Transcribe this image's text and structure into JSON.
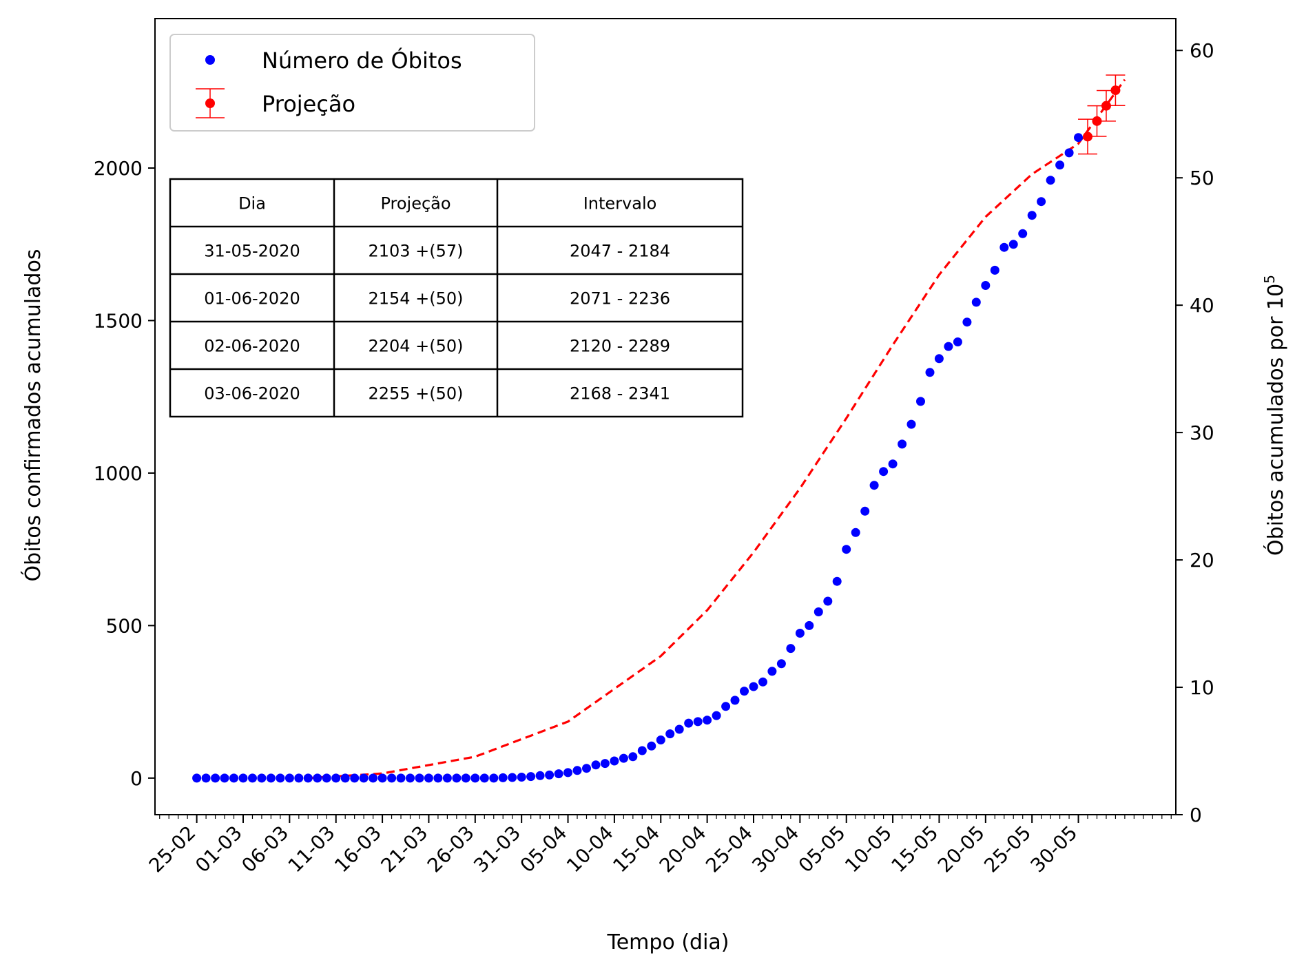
{
  "chart_data": {
    "type": "scatter",
    "xlabel": "Tempo (dia)",
    "ylabel": "Óbitos confirmados acumulados",
    "ylabel_right_prefix": "Óbitos acumulados por 10",
    "ylabel_right_exp": "5",
    "ylim": [
      -120,
      2490
    ],
    "ylim_right": [
      0,
      62.5
    ],
    "xlim_days": [
      -4.5,
      105.5
    ],
    "x_tick_labels": [
      "25-02",
      "01-03",
      "06-03",
      "11-03",
      "16-03",
      "21-03",
      "26-03",
      "31-03",
      "05-04",
      "10-04",
      "15-04",
      "20-04",
      "25-04",
      "30-04",
      "05-05",
      "10-05",
      "15-05",
      "20-05",
      "25-05",
      "30-05"
    ],
    "y_ticks": [
      0,
      500,
      1000,
      1500,
      2000
    ],
    "y_ticks_right": [
      0,
      10,
      20,
      30,
      40,
      50,
      60
    ],
    "legend": {
      "position": "top-left",
      "entries": [
        {
          "label": "Número de Óbitos",
          "color": "#0000ff",
          "marker": "dot"
        },
        {
          "label": "Projeção",
          "color": "#ff0000",
          "marker": "errorbar-dot"
        }
      ]
    },
    "series": [
      {
        "name": "Número de Óbitos",
        "color": "#0000ff",
        "start_date": "25-02",
        "values": [
          0,
          0,
          0,
          0,
          0,
          0,
          0,
          0,
          0,
          0,
          0,
          0,
          0,
          0,
          0,
          0,
          0,
          0,
          0,
          0,
          0,
          0,
          0,
          0,
          0,
          0,
          0,
          0,
          0,
          0,
          0,
          0,
          0,
          1,
          2,
          3,
          5,
          8,
          10,
          14,
          18,
          25,
          32,
          43,
          48,
          56,
          65,
          70,
          90,
          105,
          125,
          145,
          160,
          180,
          185,
          190,
          205,
          235,
          255,
          285,
          300,
          315,
          350,
          375,
          425,
          475,
          500,
          545,
          580,
          645,
          750,
          805,
          875,
          960,
          1005,
          1030,
          1095,
          1160,
          1235,
          1330,
          1375,
          1415,
          1430,
          1495,
          1560,
          1615,
          1665,
          1740,
          1750,
          1785,
          1845,
          1890,
          1960,
          2010,
          2050,
          2100
        ]
      },
      {
        "name": "Projeção",
        "color": "#ff0000",
        "points": [
          {
            "date": "31-05-2020",
            "day": 96,
            "value": 2103,
            "err": 57
          },
          {
            "date": "01-06-2020",
            "day": 97,
            "value": 2154,
            "err": 50
          },
          {
            "date": "02-06-2020",
            "day": 98,
            "value": 2204,
            "err": 50
          },
          {
            "date": "03-06-2020",
            "day": 99,
            "value": 2255,
            "err": 50
          }
        ]
      }
    ],
    "fit_curve": {
      "color": "#ff0000",
      "style": "dashed",
      "points": [
        [
          12,
          0
        ],
        [
          20,
          15
        ],
        [
          30,
          70
        ],
        [
          40,
          185
        ],
        [
          50,
          400
        ],
        [
          55,
          550
        ],
        [
          60,
          740
        ],
        [
          65,
          950
        ],
        [
          70,
          1180
        ],
        [
          75,
          1420
        ],
        [
          80,
          1650
        ],
        [
          85,
          1840
        ],
        [
          90,
          1980
        ],
        [
          95,
          2080
        ],
        [
          100,
          2290
        ]
      ]
    },
    "table": {
      "headers": [
        "Dia",
        "Projeção",
        "Intervalo"
      ],
      "rows": [
        [
          "31-05-2020",
          "2103 +(57)",
          "2047 - 2184"
        ],
        [
          "01-06-2020",
          "2154 +(50)",
          "2071 - 2236"
        ],
        [
          "02-06-2020",
          "2204 +(50)",
          "2120 - 2289"
        ],
        [
          "03-06-2020",
          "2255 +(50)",
          "2168 - 2341"
        ]
      ]
    }
  }
}
